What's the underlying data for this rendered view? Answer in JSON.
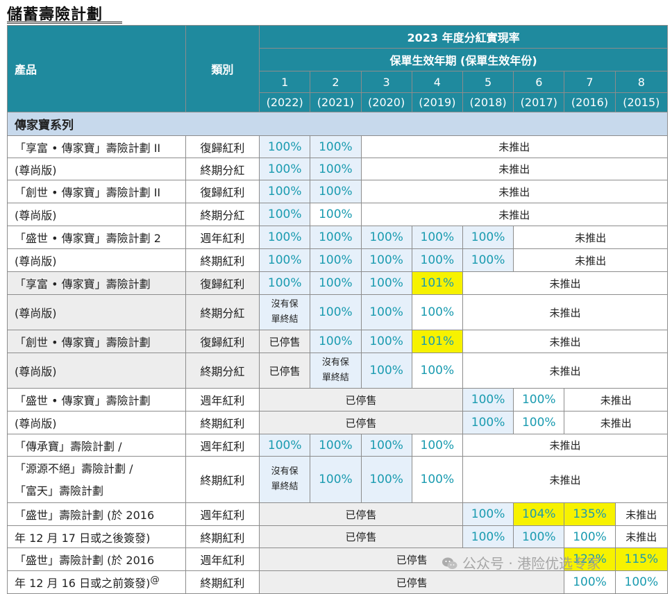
{
  "title": "儲蓄壽險計劃",
  "header": {
    "product": "產品",
    "category": "類別",
    "main": "2023 年度分紅實現率",
    "sub": "保單生效年期 (保單生效年份)",
    "years": [
      {
        "n": "1",
        "y": "(2022)"
      },
      {
        "n": "2",
        "y": "(2021)"
      },
      {
        "n": "3",
        "y": "(2020)"
      },
      {
        "n": "4",
        "y": "(2019)"
      },
      {
        "n": "5",
        "y": "(2018)"
      },
      {
        "n": "6",
        "y": "(2017)"
      },
      {
        "n": "7",
        "y": "(2016)"
      },
      {
        "n": "8",
        "y": "(2015)"
      }
    ]
  },
  "section": "傳家寶系列",
  "labels": {
    "na": "未推出",
    "stop": "已停售",
    "nb1": "沒有保",
    "nb2": "單終結"
  },
  "products": {
    "p1a": "「享富 • 傳家寶」壽險計劃 II",
    "p1b": "(尊尚版)",
    "p2a": "「創世 • 傳家寶」壽險計劃 II",
    "p2b": "(尊尚版)",
    "p3a": "「盛世 • 傳家寶」壽險計劃 2",
    "p3b": "(尊尚版)",
    "p4a": "「享富 • 傳家寶」壽險計劃",
    "p4b": "(尊尚版)",
    "p5a": "「創世 • 傳家寶」壽險計劃",
    "p5b": "(尊尚版)",
    "p6a": "「盛世 • 傳家寶」壽險計劃",
    "p6b": "(尊尚版)",
    "p7a": "「傳承寶」壽險計劃 /",
    "p7b": "「源源不絕」壽險計劃 /",
    "p7c": "「富天」壽險計劃",
    "p8a": "「盛世」壽險計劃 (於 2016",
    "p8b": "年 12 月 17 日或之後簽發)",
    "p9a": "「盛世」壽險計劃 (於 2016",
    "p9b": "年 12 月 16 日或之前簽發)",
    "p9sup": "@"
  },
  "types": {
    "rev": "復歸紅利",
    "term": "終期分紅",
    "annual": "週年紅利",
    "termB": "終期紅利"
  },
  "values": {
    "r1": [
      "100%",
      "100%"
    ],
    "r2": [
      "100%",
      "100%"
    ],
    "r3": [
      "100%",
      "100%"
    ],
    "r4": [
      "100%",
      "100%"
    ],
    "r5": [
      "100%",
      "100%",
      "100%",
      "100%",
      "100%"
    ],
    "r6": [
      "100%",
      "100%",
      "100%",
      "100%",
      "100%"
    ],
    "r7": [
      "100%",
      "100%",
      "100%",
      "101%"
    ],
    "r8": [
      "100%",
      "100%",
      "100%"
    ],
    "r9": [
      "100%",
      "100%",
      "101%"
    ],
    "r10": [
      "100%",
      "100%"
    ],
    "r11": [
      "100%",
      "100%"
    ],
    "r12": [
      "100%",
      "100%"
    ],
    "r13": [
      "100%",
      "100%",
      "100%",
      "100%"
    ],
    "r14": [
      "100%",
      "100%",
      "100%"
    ],
    "r15": [
      "100%",
      "104%",
      "135%"
    ],
    "r16": [
      "100%",
      "100%",
      "100%"
    ],
    "r17": [
      "122%",
      "115%"
    ],
    "r18": [
      "100%",
      "100%"
    ]
  },
  "watermark": "公众号 · 港险优选专家",
  "colors": {
    "header": "#1f8a9e",
    "section": "#c7d9ec",
    "value_text": "#1a9bb0",
    "highlight": "#f7f200"
  }
}
